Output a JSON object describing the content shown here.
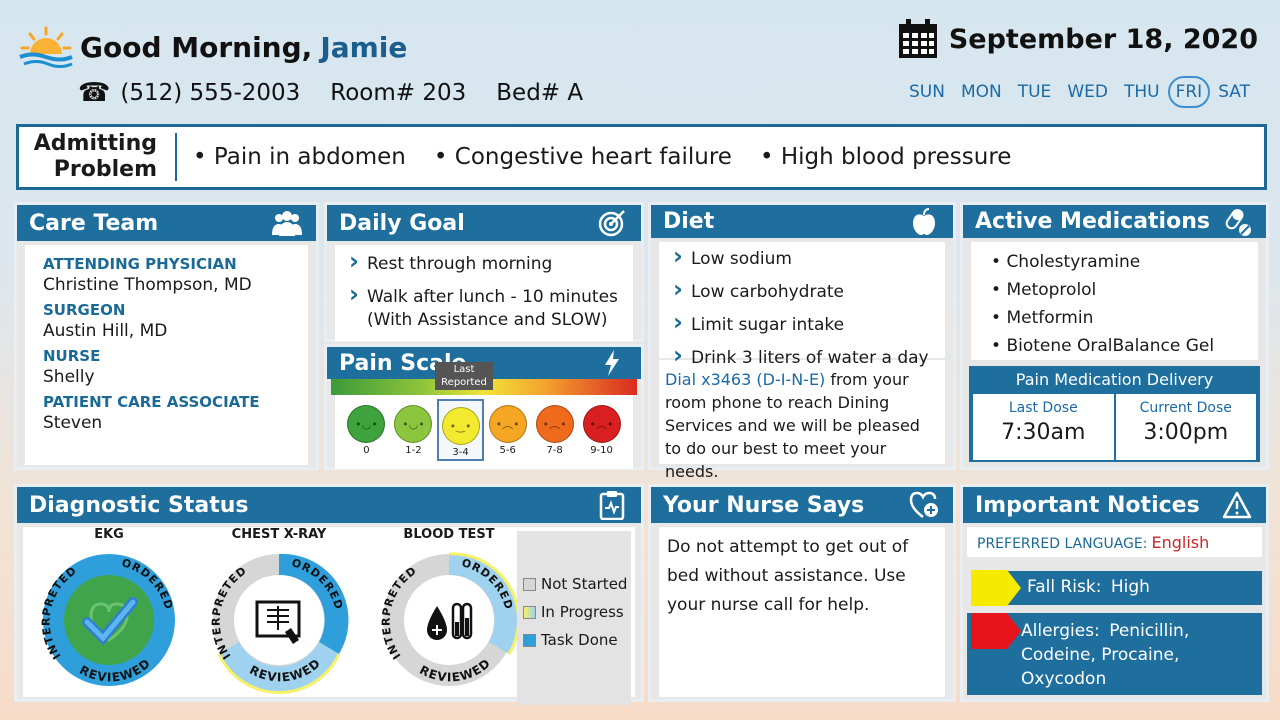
{
  "header": {
    "greeting": "Good Morning,",
    "patient_name": "Jamie",
    "phone": "(512) 555-2003",
    "room": "Room# 203",
    "bed": "Bed# A",
    "date": "September 18, 2020",
    "days": [
      "SUN",
      "MON",
      "TUE",
      "WED",
      "THU",
      "FRI",
      "SAT"
    ],
    "active_day": "FRI"
  },
  "admitting": {
    "label_line1": "Admitting",
    "label_line2": "Problem",
    "items": [
      "Pain in abdomen",
      "Congestive heart failure",
      "High blood pressure"
    ]
  },
  "care_team": {
    "title": "Care Team",
    "icon": "people-icon",
    "members": [
      {
        "role": "ATTENDING PHYSICIAN",
        "name": "Christine Thompson, MD"
      },
      {
        "role": "SURGEON",
        "name": "Austin Hill, MD"
      },
      {
        "role": "NURSE",
        "name": "Shelly"
      },
      {
        "role": "PATIENT CARE ASSOCIATE",
        "name": "Steven"
      }
    ]
  },
  "daily_goal": {
    "title": "Daily Goal",
    "icon": "target-icon",
    "items": [
      "Rest through morning",
      "Walk after lunch - 10 minutes (With Assistance and SLOW)"
    ]
  },
  "pain_scale": {
    "title": "Pain Scale",
    "icon": "lightning-icon",
    "last_reported_label_1": "Last",
    "last_reported_label_2": "Reported",
    "levels": [
      "0",
      "1-2",
      "3-4",
      "5-6",
      "7-8",
      "9-10"
    ],
    "selected": "3-4",
    "colors": [
      "#3ea33c",
      "#8cc63e",
      "#f2ea2e",
      "#f5a623",
      "#ef6a1c",
      "#d92020"
    ]
  },
  "diet": {
    "title": "Diet",
    "icon": "apple-icon",
    "items": [
      "Low sodium",
      "Low carbohydrate",
      "Limit sugar intake",
      "Drink 3 liters of water a day"
    ],
    "dial_link": "Dial x3463 (D-I-N-E)",
    "dial_text": " from your room phone to reach Dining Services and we will be pleased to do our best to meet your needs."
  },
  "medications": {
    "title": "Active Medications",
    "icon": "pills-icon",
    "items": [
      "Cholestyramine",
      "Metoprolol",
      "Metformin",
      "Biotene OralBalance Gel"
    ],
    "delivery_title": "Pain Medication Delivery",
    "last_dose_label": "Last Dose",
    "last_dose": "7:30am",
    "current_dose_label": "Current Dose",
    "current_dose": "3:00pm"
  },
  "diagnostic": {
    "title": "Diagnostic Status",
    "icon": "clipboard-icon",
    "tests": [
      {
        "name": "EKG",
        "status": "Task Done"
      },
      {
        "name": "CHEST X-RAY",
        "status": "In Progress"
      },
      {
        "name": "BLOOD TEST",
        "status": "In Progress"
      }
    ],
    "ring_labels": {
      "interpreted": "INTERPRETED",
      "ordered": "ORDERED",
      "reviewed": "REVIEWED"
    },
    "legend": [
      "Not Started",
      "In Progress",
      "Task Done"
    ]
  },
  "nurse_says": {
    "title": "Your Nurse Says",
    "icon": "heart-plus-icon",
    "text": "Do not attempt to get out of bed without assistance.  Use your nurse call for help."
  },
  "notices": {
    "title": "Important Notices",
    "icon": "warning-icon",
    "language_label": "PREFERRED LANGUAGE:",
    "language": "English",
    "fall_label": "Fall Risk:",
    "fall_value": "High",
    "allergy_label": "Allergies:",
    "allergy_value": "Penicillin, Codeine, Procaine, Oxycodon",
    "colors": {
      "fall": "#f6ea00",
      "allergy": "#e8141c"
    }
  }
}
